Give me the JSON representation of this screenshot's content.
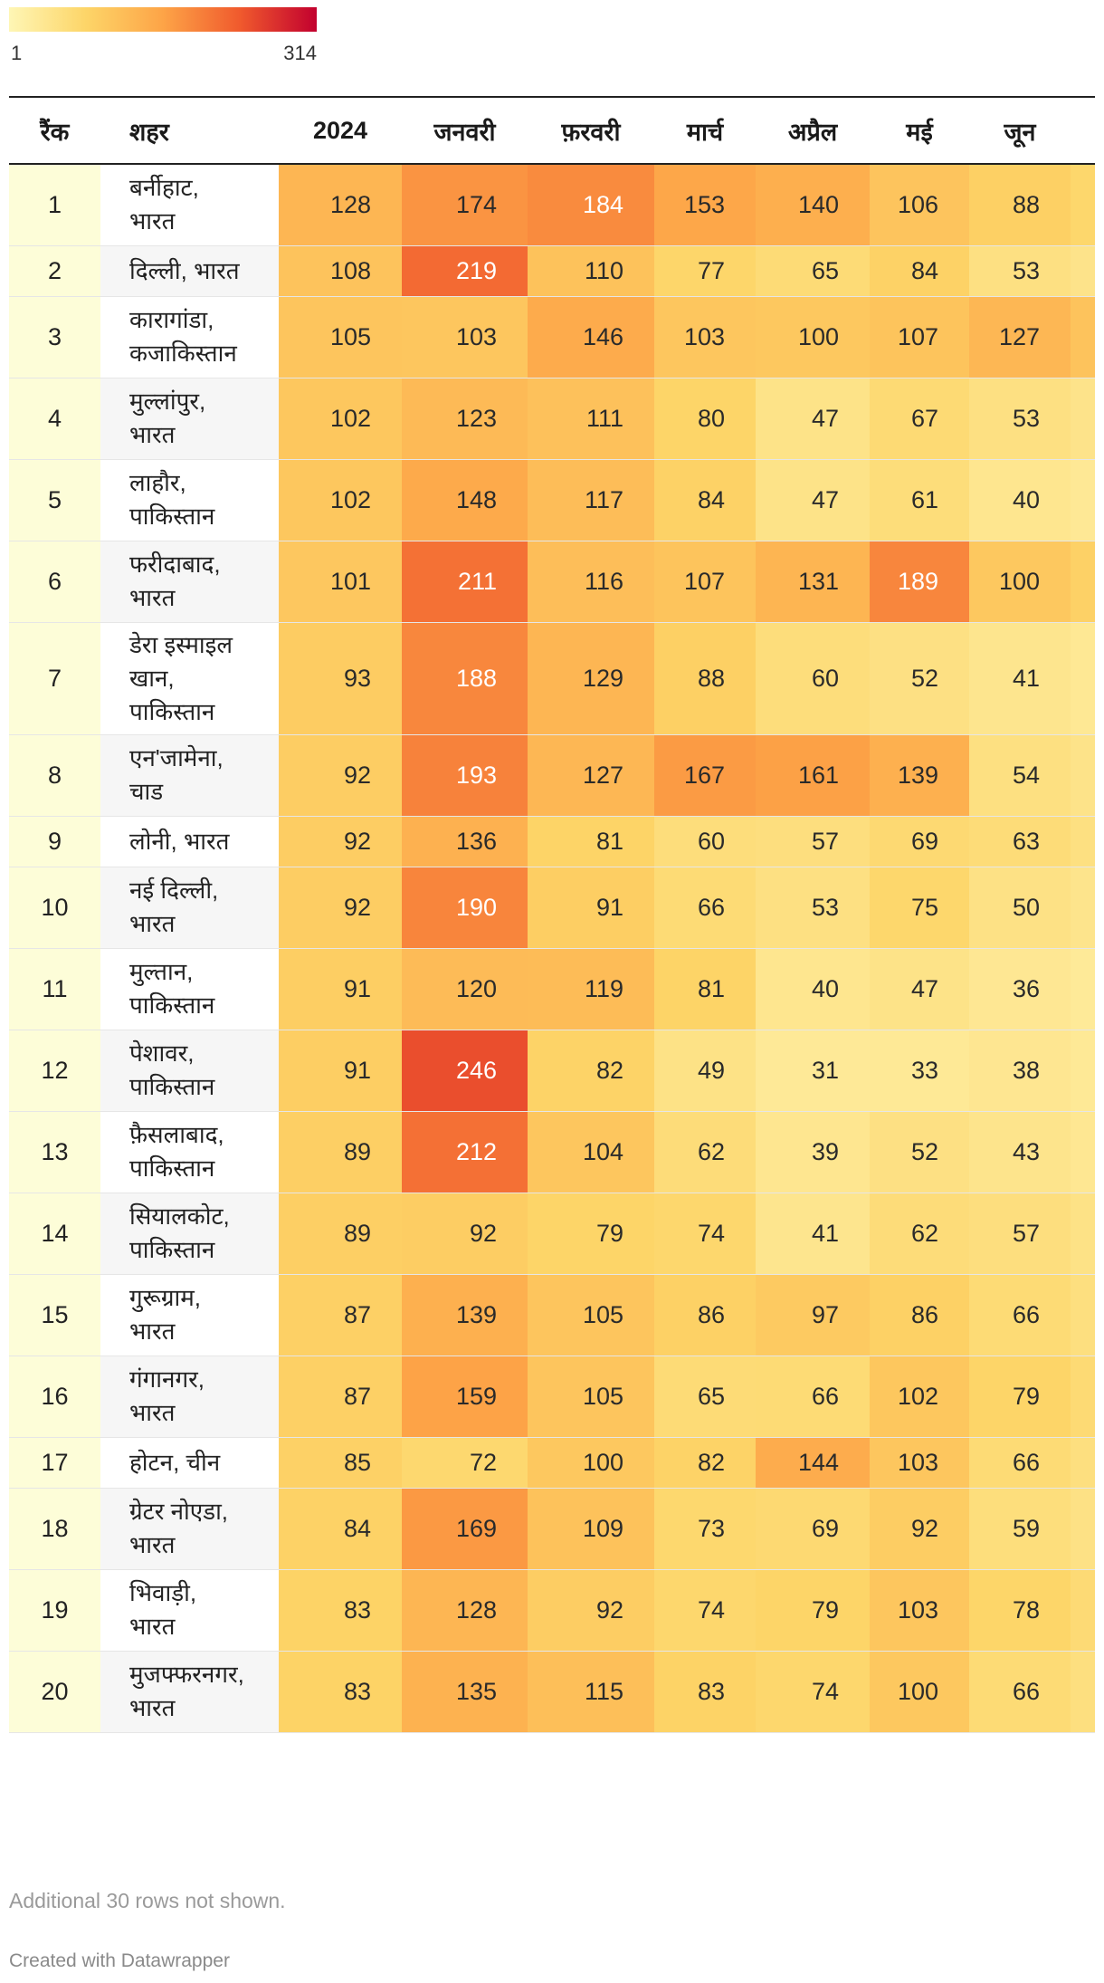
{
  "legend": {
    "min_label": "1",
    "max_label": "314",
    "min": 1,
    "max": 314
  },
  "chart_data": {
    "type": "table",
    "columns": [
      "रैंक",
      "शहर",
      "2024",
      "जनवरी",
      "फ़रवरी",
      "मार्च",
      "अप्रैल",
      "मई",
      "जून"
    ],
    "rows": [
      {
        "rank": "1",
        "city": [
          "बर्नीहाट,",
          "भारत"
        ],
        "values": [
          128,
          174,
          184,
          153,
          140,
          106,
          88
        ]
      },
      {
        "rank": "2",
        "city": [
          "दिल्ली, भारत"
        ],
        "values": [
          108,
          219,
          110,
          77,
          65,
          84,
          53
        ]
      },
      {
        "rank": "3",
        "city": [
          "कारागांडा,",
          "कजाकिस्तान"
        ],
        "values": [
          105,
          103,
          146,
          103,
          100,
          107,
          127
        ]
      },
      {
        "rank": "4",
        "city": [
          "मुल्लांपुर,",
          "भारत"
        ],
        "values": [
          102,
          123,
          111,
          80,
          47,
          67,
          53
        ]
      },
      {
        "rank": "5",
        "city": [
          "लाहौर,",
          "पाकिस्तान"
        ],
        "values": [
          102,
          148,
          117,
          84,
          47,
          61,
          40
        ]
      },
      {
        "rank": "6",
        "city": [
          "फरीदाबाद,",
          "भारत"
        ],
        "values": [
          101,
          211,
          116,
          107,
          131,
          189,
          100
        ]
      },
      {
        "rank": "7",
        "city": [
          "डेरा इस्माइल",
          "खान,",
          "पाकिस्तान"
        ],
        "values": [
          93,
          188,
          129,
          88,
          60,
          52,
          41
        ]
      },
      {
        "rank": "8",
        "city": [
          "एन'जामेना,",
          "चाड"
        ],
        "values": [
          92,
          193,
          127,
          167,
          161,
          139,
          54
        ]
      },
      {
        "rank": "9",
        "city": [
          "लोनी, भारत"
        ],
        "values": [
          92,
          136,
          81,
          60,
          57,
          69,
          63
        ]
      },
      {
        "rank": "10",
        "city": [
          "नई दिल्ली,",
          "भारत"
        ],
        "values": [
          92,
          190,
          91,
          66,
          53,
          75,
          50
        ]
      },
      {
        "rank": "11",
        "city": [
          "मुल्तान,",
          "पाकिस्तान"
        ],
        "values": [
          91,
          120,
          119,
          81,
          40,
          47,
          36
        ]
      },
      {
        "rank": "12",
        "city": [
          "पेशावर,",
          "पाकिस्तान"
        ],
        "values": [
          91,
          246,
          82,
          49,
          31,
          33,
          38
        ]
      },
      {
        "rank": "13",
        "city": [
          "फ़ैसलाबाद,",
          "पाकिस्तान"
        ],
        "values": [
          89,
          212,
          104,
          62,
          39,
          52,
          43
        ]
      },
      {
        "rank": "14",
        "city": [
          "सियालकोट,",
          "पाकिस्तान"
        ],
        "values": [
          89,
          92,
          79,
          74,
          41,
          62,
          57
        ]
      },
      {
        "rank": "15",
        "city": [
          "गुरूग्राम,",
          "भारत"
        ],
        "values": [
          87,
          139,
          105,
          86,
          97,
          86,
          66
        ]
      },
      {
        "rank": "16",
        "city": [
          "गंगानगर,",
          "भारत"
        ],
        "values": [
          87,
          159,
          105,
          65,
          66,
          102,
          79
        ]
      },
      {
        "rank": "17",
        "city": [
          "होटन, चीन"
        ],
        "values": [
          85,
          72,
          100,
          82,
          144,
          103,
          66
        ]
      },
      {
        "rank": "18",
        "city": [
          "ग्रेटर नोएडा,",
          "भारत"
        ],
        "values": [
          84,
          169,
          109,
          73,
          69,
          92,
          59
        ]
      },
      {
        "rank": "19",
        "city": [
          "भिवाड़ी,",
          "भारत"
        ],
        "values": [
          83,
          128,
          92,
          74,
          79,
          103,
          78
        ]
      },
      {
        "rank": "20",
        "city": [
          "मुजफ्फरनगर,",
          "भारत"
        ],
        "values": [
          83,
          135,
          115,
          83,
          74,
          100,
          66
        ]
      }
    ]
  },
  "footer": {
    "notes": "Additional 30 rows not shown.",
    "credit": "Created with Datawrapper"
  }
}
